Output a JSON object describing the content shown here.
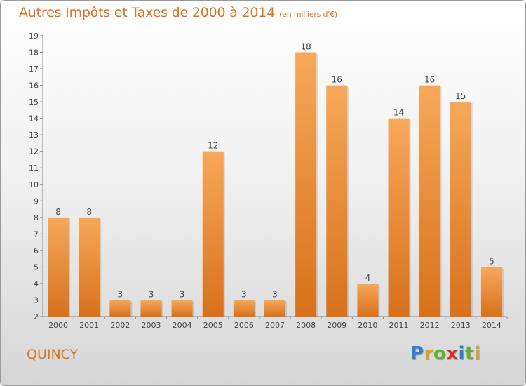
{
  "header": {
    "title": "Autres Impôts et Taxes de 2000 à 2014",
    "unit": "(en milliers d'€)"
  },
  "commune": "QUINCY",
  "logo": {
    "letters": [
      "P",
      "r",
      "o",
      "x",
      "i",
      "t",
      "i"
    ],
    "colors": [
      "#2f7fd0",
      "#e0a020",
      "#66b032",
      "#d83020",
      "#2f7fd0",
      "#66b032",
      "#e0a020"
    ]
  },
  "chart_data": {
    "type": "bar",
    "categories": [
      "2000",
      "2001",
      "2002",
      "2003",
      "2004",
      "2005",
      "2006",
      "2007",
      "2008",
      "2009",
      "2010",
      "2011",
      "2012",
      "2013",
      "2014"
    ],
    "values": [
      8,
      8,
      3,
      3,
      3,
      12,
      3,
      3,
      18,
      16,
      4,
      14,
      16,
      15,
      5
    ],
    "title": "Autres Impôts et Taxes de 2000 à 2014",
    "ylim": [
      2,
      19
    ],
    "yticks": [
      2,
      3,
      4,
      5,
      6,
      7,
      8,
      9,
      10,
      11,
      12,
      13,
      14,
      15,
      16,
      17,
      18,
      19
    ],
    "grid": false,
    "colors": {
      "bar_top": "#f7a85a",
      "bar_bottom": "#d8711b",
      "text": "#444444",
      "axis": "#888888"
    }
  }
}
